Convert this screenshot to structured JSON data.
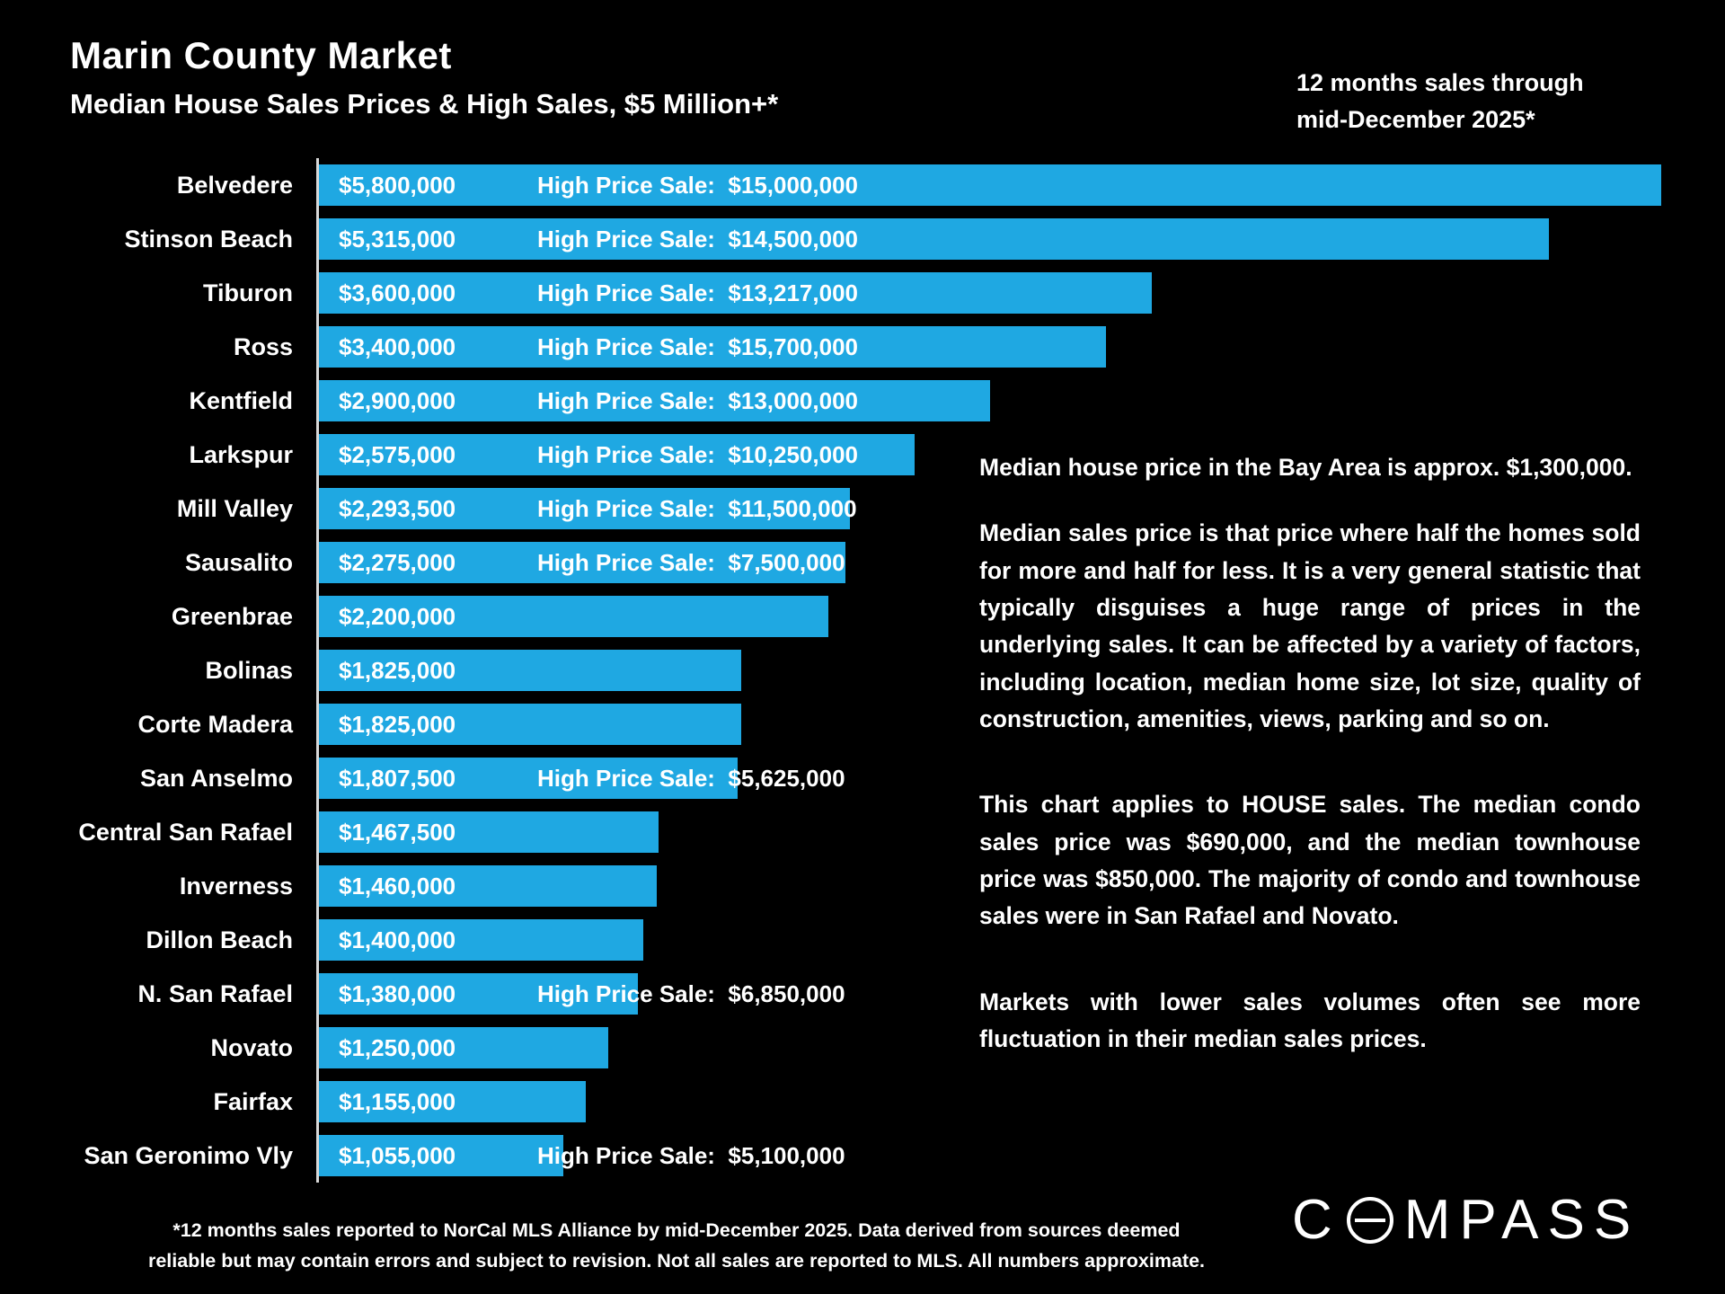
{
  "header": {
    "title": "Marin County Market",
    "subtitle": "Median House Sales Prices & High Sales, $5 Million+*",
    "period_line1": "12 months sales through",
    "period_line2": "mid-December 2025*"
  },
  "chart_data": {
    "type": "bar",
    "orientation": "horizontal",
    "bar_color": "#1FA8E2",
    "xlim": [
      0,
      5800000
    ],
    "grid": false,
    "legend": false,
    "high_price_prefix": "High Price Sale:",
    "categories": [
      "Belvedere",
      "Stinson Beach",
      "Tiburon",
      "Ross",
      "Kentfield",
      "Larkspur",
      "Mill Valley",
      "Sausalito",
      "Greenbrae",
      "Bolinas",
      "Corte Madera",
      "San Anselmo",
      "Central San Rafael",
      "Inverness",
      "Dillon Beach",
      "N. San Rafael",
      "Novato",
      "Fairfax",
      "San Geronimo Vly"
    ],
    "rows": [
      {
        "label": "Belvedere",
        "median_value": 5800000,
        "median_display": "$5,800,000",
        "high_value": 15000000,
        "high_display": "$15,000,000"
      },
      {
        "label": "Stinson Beach",
        "median_value": 5315000,
        "median_display": "$5,315,000",
        "high_value": 14500000,
        "high_display": "$14,500,000"
      },
      {
        "label": "Tiburon",
        "median_value": 3600000,
        "median_display": "$3,600,000",
        "high_value": 13217000,
        "high_display": "$13,217,000"
      },
      {
        "label": "Ross",
        "median_value": 3400000,
        "median_display": "$3,400,000",
        "high_value": 15700000,
        "high_display": "$15,700,000"
      },
      {
        "label": "Kentfield",
        "median_value": 2900000,
        "median_display": "$2,900,000",
        "high_value": 13000000,
        "high_display": "$13,000,000"
      },
      {
        "label": "Larkspur",
        "median_value": 2575000,
        "median_display": "$2,575,000",
        "high_value": 10250000,
        "high_display": "$10,250,000"
      },
      {
        "label": "Mill Valley",
        "median_value": 2293500,
        "median_display": "$2,293,500",
        "high_value": 11500000,
        "high_display": "$11,500,000"
      },
      {
        "label": "Sausalito",
        "median_value": 2275000,
        "median_display": "$2,275,000",
        "high_value": 7500000,
        "high_display": "$7,500,000"
      },
      {
        "label": "Greenbrae",
        "median_value": 2200000,
        "median_display": "$2,200,000",
        "high_value": null,
        "high_display": null
      },
      {
        "label": "Bolinas",
        "median_value": 1825000,
        "median_display": "$1,825,000",
        "high_value": null,
        "high_display": null
      },
      {
        "label": "Corte Madera",
        "median_value": 1825000,
        "median_display": "$1,825,000",
        "high_value": null,
        "high_display": null
      },
      {
        "label": "San Anselmo",
        "median_value": 1807500,
        "median_display": "$1,807,500",
        "high_value": 5625000,
        "high_display": "$5,625,000"
      },
      {
        "label": "Central San Rafael",
        "median_value": 1467500,
        "median_display": "$1,467,500",
        "high_value": null,
        "high_display": null
      },
      {
        "label": "Inverness",
        "median_value": 1460000,
        "median_display": "$1,460,000",
        "high_value": null,
        "high_display": null
      },
      {
        "label": "Dillon Beach",
        "median_value": 1400000,
        "median_display": "$1,400,000",
        "high_value": null,
        "high_display": null
      },
      {
        "label": "N. San Rafael",
        "median_value": 1380000,
        "median_display": "$1,380,000",
        "high_value": 6850000,
        "high_display": "$6,850,000"
      },
      {
        "label": "Novato",
        "median_value": 1250000,
        "median_display": "$1,250,000",
        "high_value": null,
        "high_display": null
      },
      {
        "label": "Fairfax",
        "median_value": 1155000,
        "median_display": "$1,155,000",
        "high_value": null,
        "high_display": null
      },
      {
        "label": "San Geronimo Vly",
        "median_value": 1055000,
        "median_display": "$1,055,000",
        "high_value": 5100000,
        "high_display": "$5,100,000"
      }
    ],
    "title": "Marin County Market — Median House Sales Prices & High Sales, $5 Million+*",
    "xlabel": "",
    "ylabel": ""
  },
  "annotations": {
    "paragraphs": [
      "Median house price in the Bay Area is approx. $1,300,000.",
      "Median sales price is that price where half the homes sold for more and half for less. It is a very general statistic that typically disguises a huge range of prices in the underlying sales. It can be affected by a variety of factors, including location, median home size, lot size, quality of construction, amenities, views, parking and so on.",
      "This chart applies to HOUSE sales. The median condo sales price was $690,000, and the median townhouse price was $850,000. The majority of condo and townhouse sales were in San Rafael and Novato.",
      "Markets with lower sales volumes often see more fluctuation in their median sales prices."
    ]
  },
  "footnote": {
    "line1": "*12 months sales reported to NorCal MLS Alliance by mid-December 2025. Data derived from sources deemed",
    "line2": "reliable but may contain errors and subject to revision. Not all sales are reported to MLS. All numbers approximate."
  },
  "logo": {
    "text": "COMPASS",
    "pre_o": "C",
    "post_o": "MPASS"
  }
}
